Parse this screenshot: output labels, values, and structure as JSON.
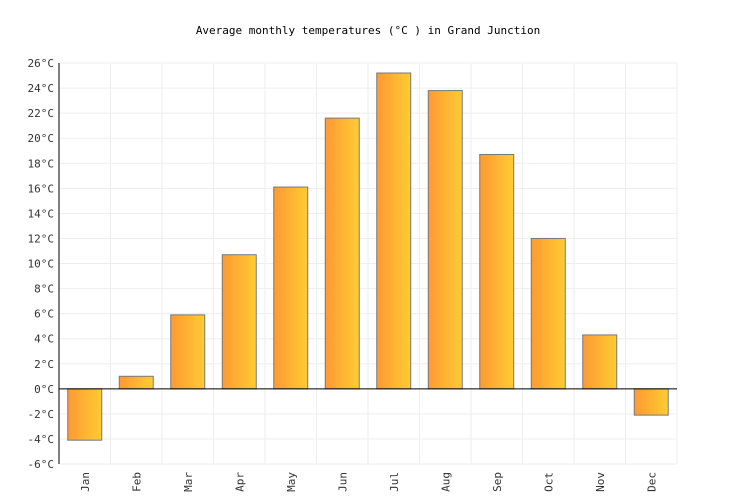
{
  "chart_data": {
    "type": "bar",
    "title": "Average monthly temperatures (°C ) in Grand Junction",
    "xlabel": "",
    "ylabel": "",
    "categories": [
      "Jan",
      "Feb",
      "Mar",
      "Apr",
      "May",
      "Jun",
      "Jul",
      "Aug",
      "Sep",
      "Oct",
      "Nov",
      "Dec"
    ],
    "series": [
      {
        "values": [
          -4.1,
          1.0,
          5.9,
          10.7,
          16.1,
          21.6,
          25.2,
          23.8,
          18.7,
          12.0,
          4.3,
          -2.1
        ]
      }
    ],
    "ylim": [
      -6,
      26
    ],
    "yticks": [
      -6,
      -4,
      -2,
      0,
      2,
      4,
      6,
      8,
      10,
      12,
      14,
      16,
      18,
      20,
      22,
      24,
      26
    ],
    "ytick_suffix": "°C",
    "grid": true,
    "legend": "none",
    "colors": {
      "bar_left": "#ff9933",
      "bar_right": "#ffcc33",
      "bar_stroke": "#777777",
      "grid": "#eeeeee",
      "axis": "#000000"
    }
  }
}
